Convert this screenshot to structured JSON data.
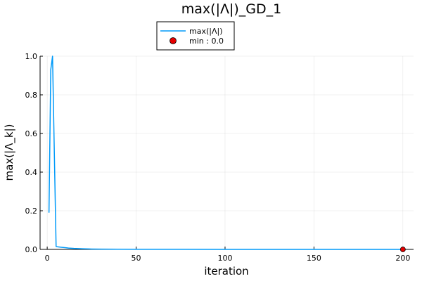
{
  "chart_data": {
    "type": "line",
    "title": "max(|Λ|)_GD_1",
    "xlabel": "iteration",
    "ylabel": "max(|Λ_k|)",
    "xlim": [
      -4,
      206
    ],
    "ylim": [
      0,
      1
    ],
    "x_ticks": [
      0,
      50,
      100,
      150,
      200
    ],
    "y_ticks": [
      0,
      0.2,
      0.4,
      0.6,
      0.8,
      1.0
    ],
    "x_tick_labels": [
      "0",
      "50",
      "100",
      "150",
      "200"
    ],
    "y_tick_labels": [
      "0.0",
      "0.2",
      "0.4",
      "0.6",
      "0.8",
      "1.0"
    ],
    "grid": true,
    "legend_position": "top-center",
    "series": [
      {
        "name": "max(|Λ|)",
        "color": "#009af9",
        "x": [
          1,
          2,
          3,
          4,
          5,
          6,
          8,
          10,
          12,
          15,
          20,
          25,
          30,
          40,
          50,
          75,
          100,
          125,
          150,
          175,
          200
        ],
        "y": [
          0.19,
          0.93,
          1.0,
          0.5,
          0.015,
          0.013,
          0.011,
          0.009,
          0.007,
          0.005,
          0.003,
          0.002,
          0.0015,
          0.001,
          0.0006,
          0.0003,
          0.0001,
          5e-05,
          2e-05,
          1e-05,
          0.0
        ]
      }
    ],
    "marker": {
      "name": "min : 0.0",
      "x": 200,
      "y": 0.0,
      "color": "#e50000"
    }
  }
}
